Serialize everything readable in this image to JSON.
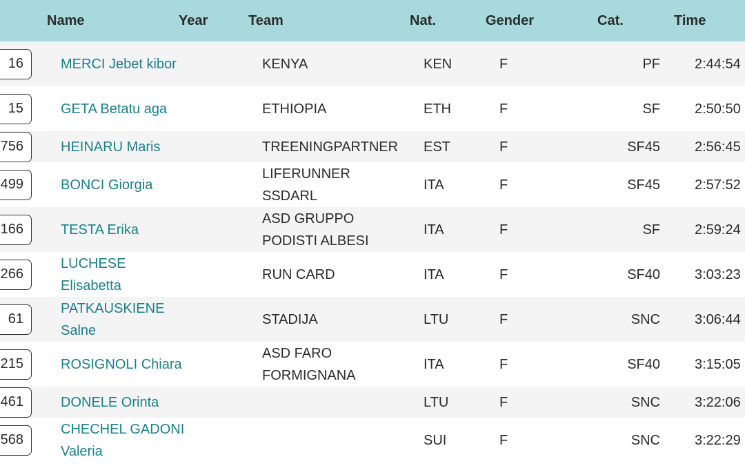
{
  "headers": {
    "name": "Name",
    "year": "Year",
    "team": "Team",
    "nat": "Nat.",
    "gender": "Gender",
    "cat": "Cat.",
    "time": "Time"
  },
  "rows": [
    {
      "bib": "16",
      "name": "MERCI Jebet kibor",
      "team": "KENYA",
      "nat": "KEN",
      "gender": "F",
      "cat": "PF",
      "time": "2:44:54"
    },
    {
      "bib": "15",
      "name": "GETA Betatu aga",
      "team": "ETHIOPIA",
      "nat": "ETH",
      "gender": "F",
      "cat": "SF",
      "time": "2:50:50"
    },
    {
      "bib": "756",
      "name": "HEINARU Maris",
      "team": "TREENINGPARTNER",
      "nat": "EST",
      "gender": "F",
      "cat": "SF45",
      "time": "2:56:45"
    },
    {
      "bib": "499",
      "name": "BONCI Giorgia",
      "team": "LIFERUNNER SSDARL",
      "nat": "ITA",
      "gender": "F",
      "cat": "SF45",
      "time": "2:57:52"
    },
    {
      "bib": "166",
      "name": "TESTA Erika",
      "team": "ASD GRUPPO PODISTI ALBESI",
      "nat": "ITA",
      "gender": "F",
      "cat": "SF",
      "time": "2:59:24"
    },
    {
      "bib": "266",
      "name": "LUCHESE Elisabetta",
      "team": "RUN CARD",
      "nat": "ITA",
      "gender": "F",
      "cat": "SF40",
      "time": "3:03:23"
    },
    {
      "bib": "61",
      "name": "PATKAUSKIENE Salne",
      "team": "STADIJA",
      "nat": "LTU",
      "gender": "F",
      "cat": "SNC",
      "time": "3:06:44"
    },
    {
      "bib": "215",
      "name": "ROSIGNOLI Chiara",
      "team": "ASD FARO FORMIGNANA",
      "nat": "ITA",
      "gender": "F",
      "cat": "SF40",
      "time": "3:15:05"
    },
    {
      "bib": "461",
      "name": "DONELE Orinta",
      "team": "",
      "nat": "LTU",
      "gender": "F",
      "cat": "SNC",
      "time": "3:22:06"
    },
    {
      "bib": "568",
      "name": "CHECHEL GADONI Valeria",
      "team": "",
      "nat": "SUI",
      "gender": "F",
      "cat": "SNC",
      "time": "3:22:29"
    }
  ]
}
